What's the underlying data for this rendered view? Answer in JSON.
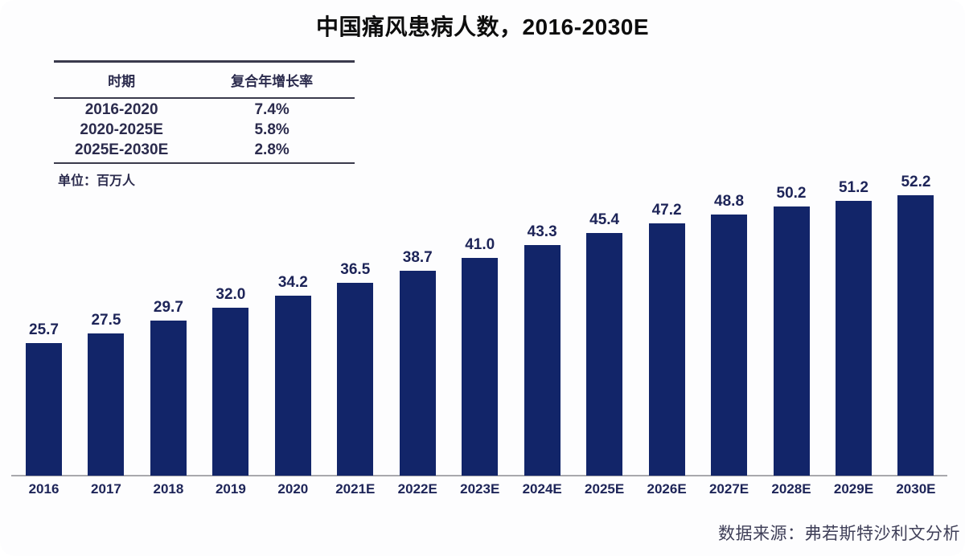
{
  "cagr_table": {
    "headers": [
      "时期",
      "复合年增长率"
    ],
    "rows": [
      {
        "period": "2016-2020",
        "cagr": "7.4%"
      },
      {
        "period": "2020-2025E",
        "cagr": "5.8%"
      },
      {
        "period": "2025E-2030E",
        "cagr": "2.8%"
      }
    ]
  },
  "unit_label": "单位：百万人",
  "source": "数据来源：弗若斯特沙利文分析",
  "chart_data": {
    "type": "bar",
    "title": "中国痛风患病人数，2016-2030E",
    "categories": [
      "2016",
      "2017",
      "2018",
      "2019",
      "2020",
      "2021E",
      "2022E",
      "2023E",
      "2024E",
      "2025E",
      "2026E",
      "2027E",
      "2028E",
      "2029E",
      "2030E"
    ],
    "values": [
      25.7,
      27.5,
      29.7,
      32.0,
      34.2,
      36.5,
      38.7,
      41.0,
      43.3,
      45.4,
      47.2,
      48.8,
      50.2,
      51.2,
      52.2
    ],
    "value_labels": [
      "25.7",
      "27.5",
      "29.7",
      "32.0",
      "34.2",
      "36.5",
      "38.7",
      "41.0",
      "43.3",
      "45.4",
      "47.2",
      "48.8",
      "50.2",
      "51.2",
      "52.2"
    ],
    "xlabel": "",
    "ylabel": "百万人",
    "ylim": [
      0,
      55
    ],
    "grid": false,
    "legend_position": "none",
    "bar_color": "#122569",
    "label_color": "#1d2458",
    "axis_line_color": "#a8a8ad"
  }
}
